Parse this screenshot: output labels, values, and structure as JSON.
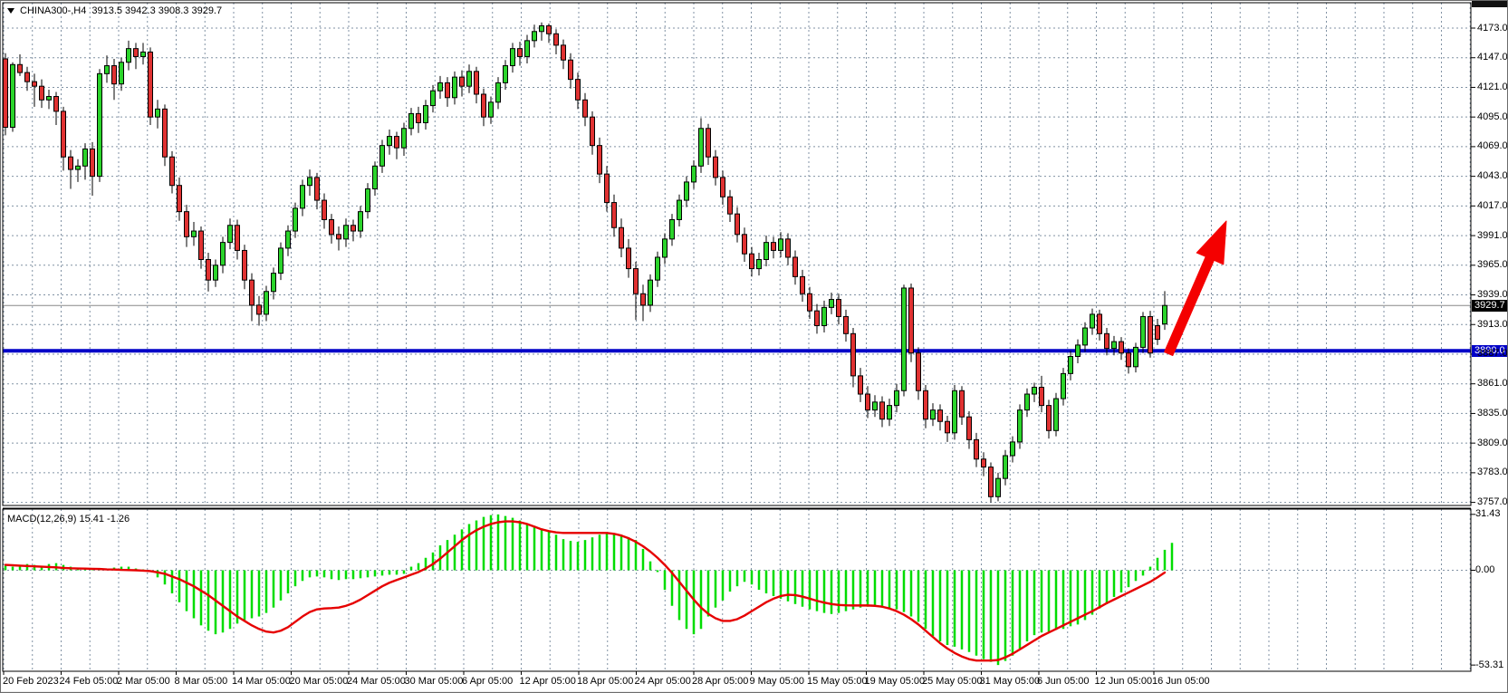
{
  "window": {
    "symbol_title": "CHINA300-,H4",
    "title_ohlc": "3913.5 3942.3 3908.3 3929.7"
  },
  "chart_data": {
    "type": "candlestick",
    "title": "CHINA300-,H4",
    "timeframe": "H4",
    "current_ohlc": {
      "open": 3913.5,
      "high": 3942.3,
      "low": 3908.3,
      "close": 3929.7
    },
    "price_axis": {
      "ticks": [
        4173.0,
        4147.0,
        4121.0,
        4095.0,
        4069.0,
        4043.0,
        4017.0,
        3991.0,
        3965.0,
        3939.0,
        3913.0,
        3887.0,
        3861.0,
        3835.0,
        3809.0,
        3783.0,
        3757.0
      ],
      "top_price": 4173.0,
      "bottom_price": 3757.0,
      "current_price_tag": "3929.7",
      "level_tag": "3890.0"
    },
    "levels": {
      "horizontal_blue_line": 3890.0,
      "current_price_line": 3929.7
    },
    "time_axis": [
      "20 Feb 2023",
      "24 Feb 05:00",
      "2 Mar 05:00",
      "8 Mar 05:00",
      "14 Mar 05:00",
      "20 Mar 05:00",
      "24 Mar 05:00",
      "30 Mar 05:00",
      "6 Apr 05:00",
      "12 Apr 05:00",
      "18 Apr 05:00",
      "24 Apr 05:00",
      "28 Apr 05:00",
      "9 May 05:00",
      "15 May 05:00",
      "19 May 05:00",
      "25 May 05:00",
      "31 May 05:00",
      "6 Jun 05:00",
      "12 Jun 05:00",
      "16 Jun 05:00"
    ],
    "candles": [
      [
        4146,
        4151,
        4079,
        4086
      ],
      [
        4086,
        4143,
        4082,
        4141
      ],
      [
        4141,
        4150,
        4131,
        4134
      ],
      [
        4134,
        4139,
        4118,
        4126
      ],
      [
        4126,
        4133,
        4104,
        4122
      ],
      [
        4122,
        4128,
        4103,
        4110
      ],
      [
        4110,
        4119,
        4102,
        4113
      ],
      [
        4113,
        4117,
        4088,
        4100
      ],
      [
        4100,
        4104,
        4048,
        4060
      ],
      [
        4060,
        4066,
        4032,
        4049
      ],
      [
        4049,
        4058,
        4038,
        4052
      ],
      [
        4052,
        4072,
        4040,
        4067
      ],
      [
        4067,
        4073,
        4026,
        4043
      ],
      [
        4043,
        4137,
        4038,
        4133
      ],
      [
        4133,
        4149,
        4125,
        4140
      ],
      [
        4140,
        4146,
        4110,
        4124
      ],
      [
        4124,
        4147,
        4118,
        4143
      ],
      [
        4143,
        4162,
        4136,
        4155
      ],
      [
        4155,
        4160,
        4137,
        4148
      ],
      [
        4148,
        4160,
        4141,
        4152
      ],
      [
        4152,
        4156,
        4088,
        4095
      ],
      [
        4095,
        4110,
        4085,
        4102
      ],
      [
        4102,
        4106,
        4052,
        4060
      ],
      [
        4060,
        4065,
        4028,
        4035
      ],
      [
        4035,
        4042,
        4004,
        4012
      ],
      [
        4012,
        4018,
        3981,
        3990
      ],
      [
        3990,
        4003,
        3982,
        3995
      ],
      [
        3995,
        3999,
        3962,
        3970
      ],
      [
        3970,
        3976,
        3942,
        3952
      ],
      [
        3952,
        3970,
        3946,
        3965
      ],
      [
        3965,
        3990,
        3958,
        3985
      ],
      [
        3985,
        4006,
        3979,
        4000
      ],
      [
        4000,
        4005,
        3970,
        3978
      ],
      [
        3978,
        3983,
        3944,
        3952
      ],
      [
        3952,
        3958,
        3916,
        3930
      ],
      [
        3930,
        3938,
        3912,
        3922
      ],
      [
        3922,
        3947,
        3916,
        3942
      ],
      [
        3942,
        3963,
        3935,
        3958
      ],
      [
        3958,
        3985,
        3952,
        3980
      ],
      [
        3980,
        4000,
        3973,
        3995
      ],
      [
        3995,
        4020,
        3989,
        4015
      ],
      [
        4015,
        4040,
        4008,
        4035
      ],
      [
        4035,
        4049,
        4026,
        4042
      ],
      [
        4042,
        4046,
        4014,
        4022
      ],
      [
        4022,
        4028,
        3997,
        4005
      ],
      [
        4005,
        4010,
        3984,
        3992
      ],
      [
        3992,
        3999,
        3978,
        3988
      ],
      [
        3988,
        4006,
        3981,
        4000
      ],
      [
        4000,
        4005,
        3986,
        3995
      ],
      [
        3995,
        4017,
        3989,
        4012
      ],
      [
        4012,
        4037,
        4006,
        4032
      ],
      [
        4032,
        4056,
        4026,
        4052
      ],
      [
        4052,
        4075,
        4046,
        4070
      ],
      [
        4070,
        4084,
        4062,
        4078
      ],
      [
        4078,
        4082,
        4058,
        4068
      ],
      [
        4068,
        4090,
        4061,
        4085
      ],
      [
        4085,
        4103,
        4079,
        4098
      ],
      [
        4098,
        4104,
        4081,
        4090
      ],
      [
        4090,
        4110,
        4084,
        4105
      ],
      [
        4105,
        4123,
        4099,
        4118
      ],
      [
        4118,
        4131,
        4111,
        4125
      ],
      [
        4125,
        4130,
        4104,
        4112
      ],
      [
        4112,
        4135,
        4106,
        4130
      ],
      [
        4130,
        4136,
        4113,
        4122
      ],
      [
        4122,
        4141,
        4116,
        4135
      ],
      [
        4135,
        4139,
        4107,
        4115
      ],
      [
        4115,
        4120,
        4087,
        4095
      ],
      [
        4095,
        4113,
        4089,
        4108
      ],
      [
        4108,
        4130,
        4102,
        4125
      ],
      [
        4125,
        4145,
        4119,
        4140
      ],
      [
        4140,
        4160,
        4134,
        4155
      ],
      [
        4155,
        4161,
        4140,
        4148
      ],
      [
        4148,
        4167,
        4142,
        4162
      ],
      [
        4162,
        4176,
        4156,
        4170
      ],
      [
        4170,
        4178,
        4162,
        4175
      ],
      [
        4175,
        4177,
        4160,
        4168
      ],
      [
        4168,
        4172,
        4150,
        4158
      ],
      [
        4158,
        4163,
        4137,
        4145
      ],
      [
        4145,
        4151,
        4120,
        4128
      ],
      [
        4128,
        4134,
        4102,
        4110
      ],
      [
        4110,
        4116,
        4087,
        4095
      ],
      [
        4095,
        4100,
        4062,
        4070
      ],
      [
        4070,
        4077,
        4037,
        4045
      ],
      [
        4045,
        4052,
        4012,
        4020
      ],
      [
        4020,
        4027,
        3990,
        3998
      ],
      [
        3998,
        4006,
        3972,
        3980
      ],
      [
        3980,
        3988,
        3954,
        3962
      ],
      [
        3962,
        3968,
        3917,
        3940
      ],
      [
        3940,
        3948,
        3916,
        3930
      ],
      [
        3930,
        3957,
        3924,
        3952
      ],
      [
        3952,
        3977,
        3946,
        3972
      ],
      [
        3972,
        3993,
        3966,
        3988
      ],
      [
        3988,
        4010,
        3982,
        4005
      ],
      [
        4005,
        4027,
        3999,
        4022
      ],
      [
        4022,
        4043,
        4016,
        4038
      ],
      [
        4038,
        4057,
        4032,
        4052
      ],
      [
        4052,
        4094,
        4046,
        4085
      ],
      [
        4085,
        4089,
        4053,
        4060
      ],
      [
        4060,
        4066,
        4035,
        4042
      ],
      [
        4042,
        4048,
        4018,
        4025
      ],
      [
        4025,
        4031,
        4003,
        4010
      ],
      [
        4010,
        4016,
        3985,
        3992
      ],
      [
        3992,
        3998,
        3968,
        3975
      ],
      [
        3975,
        3981,
        3955,
        3962
      ],
      [
        3962,
        3976,
        3956,
        3970
      ],
      [
        3970,
        3991,
        3964,
        3985
      ],
      [
        3985,
        3990,
        3971,
        3978
      ],
      [
        3978,
        3994,
        3972,
        3988
      ],
      [
        3988,
        3993,
        3965,
        3972
      ],
      [
        3972,
        3978,
        3948,
        3955
      ],
      [
        3955,
        3961,
        3933,
        3940
      ],
      [
        3940,
        3946,
        3918,
        3925
      ],
      [
        3925,
        3931,
        3905,
        3912
      ],
      [
        3912,
        3934,
        3906,
        3928
      ],
      [
        3928,
        3941,
        3922,
        3935
      ],
      [
        3935,
        3940,
        3913,
        3920
      ],
      [
        3920,
        3926,
        3898,
        3905
      ],
      [
        3905,
        3910,
        3858,
        3868
      ],
      [
        3868,
        3875,
        3845,
        3852
      ],
      [
        3852,
        3859,
        3831,
        3838
      ],
      [
        3838,
        3851,
        3832,
        3845
      ],
      [
        3845,
        3850,
        3823,
        3830
      ],
      [
        3830,
        3848,
        3824,
        3842
      ],
      [
        3842,
        3861,
        3836,
        3855
      ],
      [
        3855,
        3948,
        3850,
        3945
      ],
      [
        3945,
        3949,
        3880,
        3888
      ],
      [
        3888,
        3893,
        3847,
        3855
      ],
      [
        3855,
        3860,
        3822,
        3830
      ],
      [
        3830,
        3844,
        3824,
        3838
      ],
      [
        3838,
        3843,
        3820,
        3828
      ],
      [
        3828,
        3833,
        3810,
        3818
      ],
      [
        3818,
        3860,
        3812,
        3855
      ],
      [
        3855,
        3859,
        3825,
        3832
      ],
      [
        3832,
        3837,
        3804,
        3812
      ],
      [
        3812,
        3818,
        3788,
        3795
      ],
      [
        3795,
        3801,
        3780,
        3788
      ],
      [
        3788,
        3792,
        3757,
        3762
      ],
      [
        3762,
        3783,
        3758,
        3778
      ],
      [
        3778,
        3803,
        3772,
        3798
      ],
      [
        3798,
        3815,
        3792,
        3810
      ],
      [
        3810,
        3843,
        3804,
        3838
      ],
      [
        3838,
        3857,
        3832,
        3852
      ],
      [
        3852,
        3862,
        3845,
        3858
      ],
      [
        3858,
        3868,
        3836,
        3842
      ],
      [
        3842,
        3847,
        3813,
        3820
      ],
      [
        3820,
        3853,
        3815,
        3848
      ],
      [
        3848,
        3875,
        3842,
        3870
      ],
      [
        3870,
        3890,
        3864,
        3885
      ],
      [
        3885,
        3900,
        3879,
        3895
      ],
      [
        3895,
        3915,
        3889,
        3910
      ],
      [
        3910,
        3927,
        3904,
        3922
      ],
      [
        3922,
        3926,
        3899,
        3905
      ],
      [
        3905,
        3910,
        3886,
        3892
      ],
      [
        3892,
        3903,
        3886,
        3898
      ],
      [
        3898,
        3902,
        3882,
        3888
      ],
      [
        3888,
        3892,
        3870,
        3876
      ],
      [
        3876,
        3897,
        3871,
        3893
      ],
      [
        3893,
        3924,
        3888,
        3920
      ],
      [
        3920,
        3925,
        3884,
        3888
      ],
      [
        3912,
        3918,
        3895,
        3900
      ],
      [
        3913.5,
        3942.3,
        3908.3,
        3929.7
      ]
    ],
    "macd": {
      "label": "MACD(12,26,9) 15.41 -1.26",
      "params": "12,26,9",
      "main_value": 15.41,
      "signal_value": -1.26,
      "axis_ticks": [
        31.43,
        0.0,
        -53.31
      ],
      "axis_tick_labels": [
        "31.43",
        "0.00",
        "-53.31"
      ],
      "histogram": [
        2.5,
        2,
        3,
        3.5,
        3,
        2.5,
        3.5,
        4,
        3,
        2,
        1.5,
        1,
        0.5,
        0.5,
        1,
        1.5,
        2,
        2,
        1,
        0.5,
        -1,
        -4,
        -8,
        -13,
        -18,
        -23,
        -27,
        -31,
        -34,
        -36,
        -35,
        -33,
        -30,
        -28,
        -27,
        -26,
        -24,
        -21,
        -17,
        -13,
        -9,
        -6,
        -4,
        -3.5,
        -4,
        -5,
        -5.5,
        -5,
        -5,
        -4.5,
        -4,
        -3.5,
        -3,
        -2.5,
        -2.5,
        -2,
        2,
        4,
        7,
        10,
        14,
        17,
        20,
        23,
        26,
        28,
        30,
        31,
        31.4,
        30.5,
        29.5,
        28,
        26.5,
        25,
        23.5,
        22,
        20,
        17.5,
        16.5,
        16,
        17,
        18.5,
        20,
        20.5,
        20.5,
        20,
        18.5,
        17,
        12,
        5,
        -1,
        -11,
        -20,
        -28,
        -33,
        -36,
        -33,
        -26,
        -21,
        -17,
        -12,
        -9,
        -6.5,
        -8,
        -11,
        -13,
        -14.5,
        -16,
        -17.5,
        -19,
        -20.5,
        -22,
        -23,
        -24,
        -24.6,
        -24,
        -23,
        -22,
        -21,
        -20.5,
        -20.5,
        -21,
        -21.5,
        -22,
        -23.5,
        -26,
        -29,
        -33,
        -37,
        -40,
        -42,
        -43,
        -44.5,
        -46,
        -48,
        -50,
        -51.5,
        -53.3,
        -51,
        -48,
        -44,
        -40,
        -36.5,
        -35,
        -34.5,
        -33.5,
        -33,
        -31.5,
        -30.5,
        -28,
        -25,
        -21.5,
        -19,
        -15,
        -12.5,
        -9.5,
        -6,
        -3,
        2,
        7,
        11.5,
        15.41
      ],
      "signal": [
        3,
        2.8,
        2.6,
        2.4,
        2.2,
        2,
        1.8,
        1.6,
        1.3,
        1.1,
        1,
        0.9,
        0.8,
        0.7,
        0.5,
        0.4,
        0.2,
        0.1,
        0,
        -0.2,
        -0.5,
        -1.2,
        -2,
        -3.5,
        -5,
        -7,
        -9,
        -11.5,
        -14,
        -17,
        -20,
        -23,
        -26,
        -28.5,
        -31,
        -33,
        -34.5,
        -35,
        -34,
        -32,
        -29,
        -26,
        -23.5,
        -22,
        -21.5,
        -21.3,
        -21,
        -20,
        -18.5,
        -16.5,
        -14,
        -11.5,
        -9,
        -7,
        -5.5,
        -4,
        -2.5,
        -1,
        1,
        3.5,
        6.5,
        10,
        13.5,
        17,
        20,
        22.5,
        24.5,
        26,
        27,
        27.5,
        27.5,
        27,
        26,
        24.5,
        23,
        22,
        21.3,
        21,
        21,
        21,
        21,
        21,
        21,
        21,
        20.5,
        19.5,
        18,
        16,
        13.5,
        10.5,
        7,
        3,
        -1.5,
        -6.5,
        -11.5,
        -16.5,
        -21,
        -24.5,
        -27,
        -28.5,
        -28.5,
        -27.5,
        -25.5,
        -23,
        -20.5,
        -18,
        -16,
        -14.5,
        -13.8,
        -14,
        -14.8,
        -16,
        -17.2,
        -18.2,
        -19,
        -19.5,
        -19.7,
        -19.8,
        -19.8,
        -19.8,
        -20,
        -20.5,
        -21.5,
        -23,
        -25,
        -27.5,
        -30.5,
        -34,
        -37.5,
        -41,
        -44,
        -46.5,
        -48.5,
        -50,
        -50.8,
        -50.8,
        -50.8,
        -50.5,
        -49,
        -47,
        -44.5,
        -42,
        -39.5,
        -37,
        -35,
        -33,
        -31,
        -29,
        -27,
        -25,
        -23,
        -20.8,
        -18.5,
        -16.5,
        -14.5,
        -12.5,
        -10.5,
        -8.5,
        -6.5,
        -4,
        -1.26
      ]
    },
    "annotation": {
      "type": "arrow-up",
      "color": "#f40000"
    },
    "colors": {
      "bull": "#2bd42b",
      "bear": "#e03232",
      "wick": "#000000",
      "outline": "#000000",
      "grid": "#8192a4",
      "macd_hist": "#00dd00",
      "macd_signal": "#e60000",
      "level_line": "#0000c8",
      "current_line": "#888888"
    },
    "legend_position": "none",
    "grid": true
  }
}
